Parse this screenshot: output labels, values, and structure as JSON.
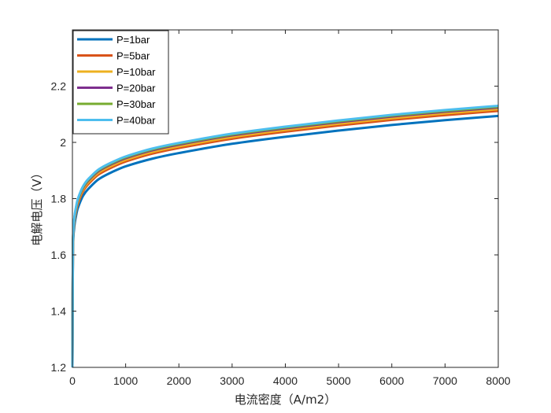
{
  "chart_data": {
    "type": "line",
    "title": "",
    "xlabel": "电流密度（A/m2）",
    "ylabel": "电解电压（V）",
    "xlim": [
      0,
      8000
    ],
    "ylim": [
      1.2,
      2.4
    ],
    "xticks": [
      0,
      1000,
      2000,
      3000,
      4000,
      5000,
      6000,
      7000,
      8000
    ],
    "yticks": [
      1.2,
      1.4,
      1.6,
      1.8,
      2,
      2.2
    ],
    "grid": false,
    "legend_position": "top-left",
    "x": [
      0,
      10,
      25,
      50,
      100,
      200,
      300,
      500,
      750,
      1000,
      1500,
      2000,
      3000,
      4000,
      5000,
      6000,
      7000,
      8000
    ],
    "series": [
      {
        "name": "P=1bar",
        "color": "#0072BD",
        "values": [
          1.2,
          1.62,
          1.68,
          1.72,
          1.765,
          1.81,
          1.835,
          1.87,
          1.895,
          1.915,
          1.942,
          1.962,
          1.995,
          2.02,
          2.042,
          2.062,
          2.079,
          2.094
        ]
      },
      {
        "name": "P=5bar",
        "color": "#D95319",
        "values": [
          1.2,
          1.635,
          1.695,
          1.735,
          1.78,
          1.826,
          1.852,
          1.887,
          1.912,
          1.932,
          1.96,
          1.98,
          2.013,
          2.038,
          2.06,
          2.08,
          2.097,
          2.112
        ]
      },
      {
        "name": "P=10bar",
        "color": "#EDB120",
        "values": [
          1.2,
          1.64,
          1.7,
          1.74,
          1.786,
          1.832,
          1.858,
          1.893,
          1.918,
          1.938,
          1.966,
          1.986,
          2.019,
          2.044,
          2.066,
          2.086,
          2.103,
          2.118
        ]
      },
      {
        "name": "P=20bar",
        "color": "#7E2F8E",
        "values": [
          1.2,
          1.646,
          1.706,
          1.746,
          1.792,
          1.838,
          1.864,
          1.899,
          1.924,
          1.944,
          1.972,
          1.992,
          2.025,
          2.05,
          2.072,
          2.092,
          2.109,
          2.124
        ]
      },
      {
        "name": "P=30bar",
        "color": "#77AC30",
        "values": [
          1.2,
          1.649,
          1.709,
          1.749,
          1.795,
          1.841,
          1.867,
          1.902,
          1.927,
          1.947,
          1.975,
          1.995,
          2.028,
          2.053,
          2.075,
          2.095,
          2.112,
          2.127
        ]
      },
      {
        "name": "P=40bar",
        "color": "#4DBEEE",
        "values": [
          1.2,
          1.652,
          1.712,
          1.752,
          1.798,
          1.844,
          1.87,
          1.905,
          1.93,
          1.95,
          1.978,
          1.998,
          2.031,
          2.056,
          2.078,
          2.098,
          2.115,
          2.13
        ]
      }
    ]
  }
}
